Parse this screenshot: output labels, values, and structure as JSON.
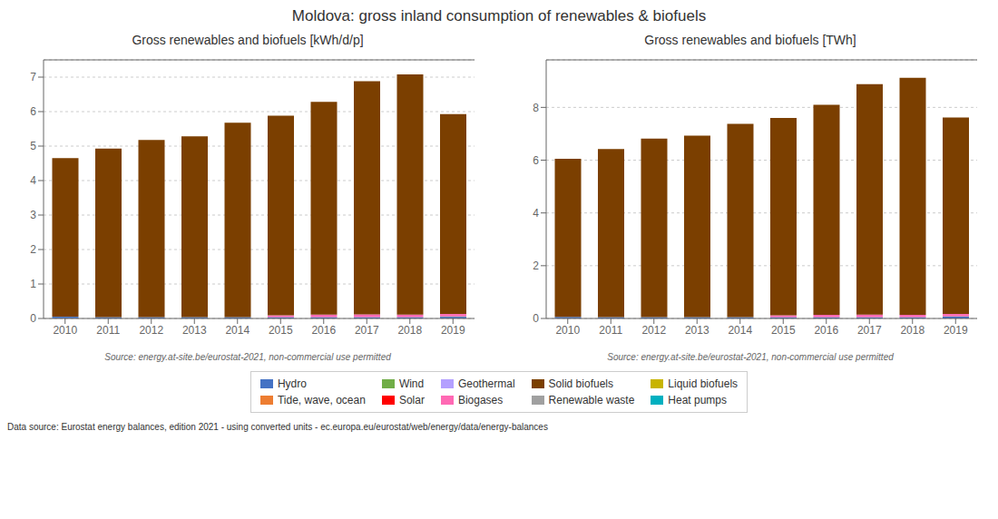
{
  "title": "Moldova: gross inland consumption of renewables & biofuels",
  "annotations": [
    "Data source: Eurostat energy balances, edition 2021 - using converted units - ec.europa.eu/eurostat/web/energy/data/energy-balances"
  ],
  "legend": "bottom",
  "chart_data": [
    {
      "type": "bar",
      "stacked": true,
      "grid": true,
      "title": "Gross renewables and biofuels [kWh/d/p]",
      "annotations": [
        "Source: energy.at-site.be/eurostat-2021, non-commercial use permitted"
      ],
      "categories": [
        "2010",
        "2011",
        "2012",
        "2013",
        "2014",
        "2015",
        "2016",
        "2017",
        "2018",
        "2019"
      ],
      "ylim": [
        0,
        7.5
      ],
      "yticks": [
        0,
        1,
        2,
        3,
        4,
        5,
        6,
        7
      ],
      "series": [
        {
          "name": "Hydro",
          "color": "#4472c4",
          "values": [
            0.05,
            0.04,
            0.04,
            0.04,
            0.04,
            0.04,
            0.04,
            0.04,
            0.04,
            0.05
          ]
        },
        {
          "name": "Tide, wave, ocean",
          "color": "#ed7d31",
          "values": [
            0.0,
            0.0,
            0.0,
            0.0,
            0.0,
            0.0,
            0.0,
            0.0,
            0.0,
            0.0
          ]
        },
        {
          "name": "Wind",
          "color": "#70ad47",
          "values": [
            0.0,
            0.0,
            0.0,
            0.0,
            0.0,
            0.0,
            0.0,
            0.0,
            0.0,
            0.01
          ]
        },
        {
          "name": "Solar",
          "color": "#ff0000",
          "values": [
            0.0,
            0.0,
            0.0,
            0.0,
            0.0,
            0.0,
            0.0,
            0.0,
            0.0,
            0.0
          ]
        },
        {
          "name": "Geothermal",
          "color": "#b4a0ff",
          "values": [
            0.0,
            0.0,
            0.0,
            0.0,
            0.0,
            0.0,
            0.0,
            0.0,
            0.0,
            0.0
          ]
        },
        {
          "name": "Biogases",
          "color": "#ff69b4",
          "values": [
            0.0,
            0.0,
            0.0,
            0.0,
            0.0,
            0.05,
            0.07,
            0.08,
            0.07,
            0.07
          ]
        },
        {
          "name": "Solid biofuels",
          "color": "#7b3f00",
          "values": [
            4.6,
            4.89,
            5.14,
            5.24,
            5.64,
            5.79,
            6.17,
            6.76,
            6.97,
            5.8
          ]
        },
        {
          "name": "Renewable waste",
          "color": "#a0a0a0",
          "values": [
            0.0,
            0.0,
            0.0,
            0.0,
            0.0,
            0.0,
            0.0,
            0.0,
            0.0,
            0.0
          ]
        },
        {
          "name": "Liquid biofuels",
          "color": "#c8b400",
          "values": [
            0.0,
            0.0,
            0.0,
            0.0,
            0.0,
            0.0,
            0.0,
            0.0,
            0.0,
            0.0
          ]
        },
        {
          "name": "Heat pumps",
          "color": "#00b0c0",
          "values": [
            0.0,
            0.0,
            0.0,
            0.0,
            0.0,
            0.0,
            0.0,
            0.0,
            0.0,
            0.0
          ]
        }
      ]
    },
    {
      "type": "bar",
      "stacked": true,
      "grid": true,
      "title": "Gross renewables and biofuels [TWh]",
      "annotations": [
        "Source: energy.at-site.be/eurostat-2021, non-commercial use permitted"
      ],
      "categories": [
        "2010",
        "2011",
        "2012",
        "2013",
        "2014",
        "2015",
        "2016",
        "2017",
        "2018",
        "2019"
      ],
      "ylim": [
        0,
        9.8
      ],
      "yticks": [
        0,
        2,
        4,
        6,
        8
      ],
      "series": [
        {
          "name": "Hydro",
          "color": "#4472c4",
          "values": [
            0.06,
            0.05,
            0.05,
            0.05,
            0.05,
            0.05,
            0.05,
            0.05,
            0.05,
            0.07
          ]
        },
        {
          "name": "Tide, wave, ocean",
          "color": "#ed7d31",
          "values": [
            0.0,
            0.0,
            0.0,
            0.0,
            0.0,
            0.0,
            0.0,
            0.0,
            0.0,
            0.0
          ]
        },
        {
          "name": "Wind",
          "color": "#70ad47",
          "values": [
            0.0,
            0.0,
            0.0,
            0.0,
            0.0,
            0.0,
            0.0,
            0.0,
            0.0,
            0.01
          ]
        },
        {
          "name": "Solar",
          "color": "#ff0000",
          "values": [
            0.0,
            0.0,
            0.0,
            0.0,
            0.0,
            0.0,
            0.0,
            0.0,
            0.0,
            0.0
          ]
        },
        {
          "name": "Geothermal",
          "color": "#b4a0ff",
          "values": [
            0.0,
            0.0,
            0.0,
            0.0,
            0.0,
            0.0,
            0.0,
            0.0,
            0.0,
            0.0
          ]
        },
        {
          "name": "Biogases",
          "color": "#ff69b4",
          "values": [
            0.0,
            0.0,
            0.0,
            0.0,
            0.0,
            0.07,
            0.09,
            0.1,
            0.09,
            0.09
          ]
        },
        {
          "name": "Solid biofuels",
          "color": "#7b3f00",
          "values": [
            5.99,
            6.37,
            6.77,
            6.88,
            7.33,
            7.48,
            7.96,
            8.73,
            8.98,
            7.45
          ]
        },
        {
          "name": "Renewable waste",
          "color": "#a0a0a0",
          "values": [
            0.0,
            0.0,
            0.0,
            0.0,
            0.0,
            0.0,
            0.0,
            0.0,
            0.0,
            0.0
          ]
        },
        {
          "name": "Liquid biofuels",
          "color": "#c8b400",
          "values": [
            0.0,
            0.0,
            0.0,
            0.0,
            0.0,
            0.0,
            0.0,
            0.0,
            0.0,
            0.0
          ]
        },
        {
          "name": "Heat pumps",
          "color": "#00b0c0",
          "values": [
            0.0,
            0.0,
            0.0,
            0.0,
            0.0,
            0.0,
            0.0,
            0.0,
            0.0,
            0.0
          ]
        }
      ]
    }
  ]
}
